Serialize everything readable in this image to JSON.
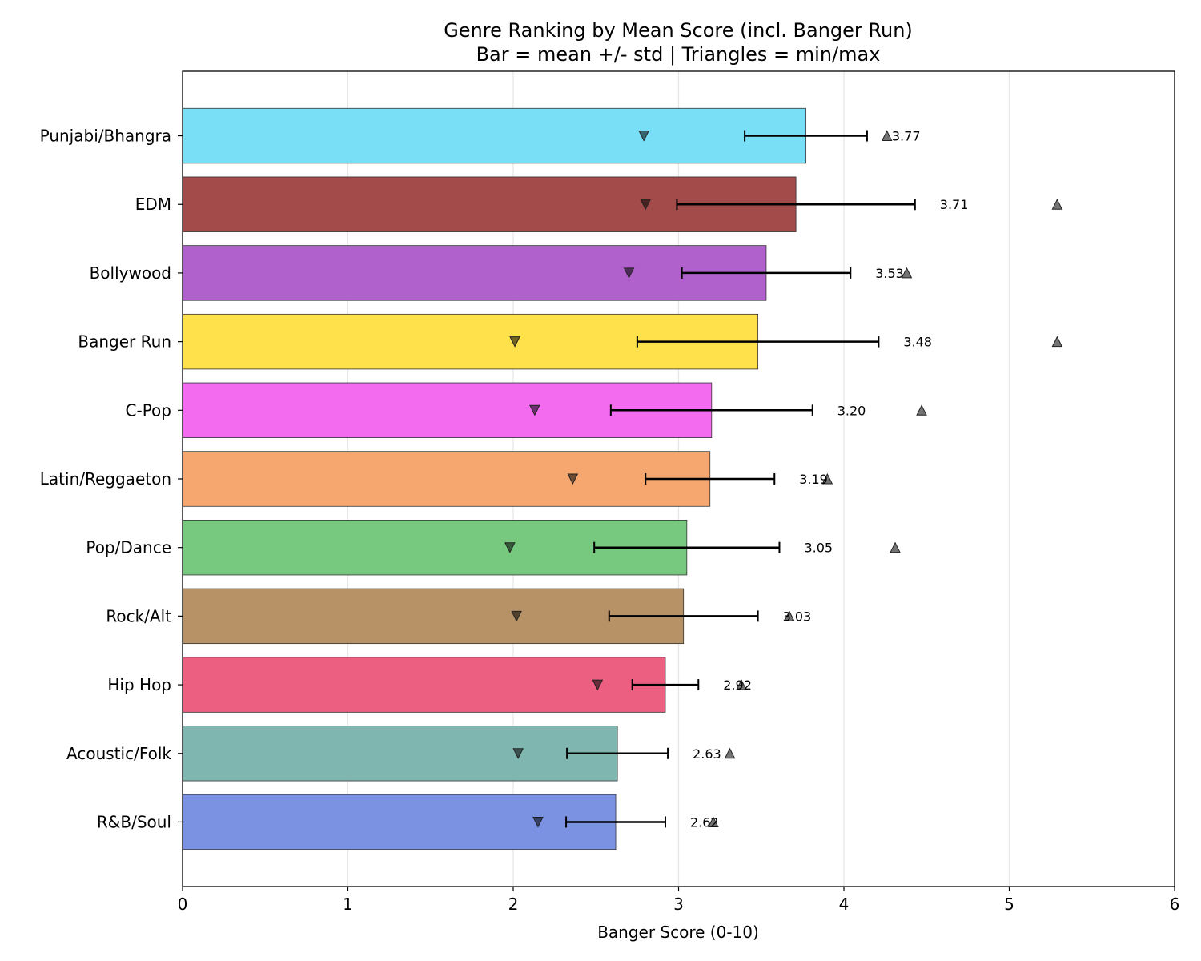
{
  "chart_data": {
    "type": "bar",
    "orientation": "horizontal",
    "title": "Genre Ranking by Mean Score (incl. Banger Run)",
    "subtitle": "Bar = mean +/- std | Triangles = min/max",
    "xlabel": "Banger Score (0-10)",
    "ylabel": "",
    "xlim": [
      0,
      6
    ],
    "xticks": [
      0,
      1,
      2,
      3,
      4,
      5,
      6
    ],
    "grid": "x",
    "categories": [
      "Punjabi/Bhangra",
      "EDM",
      "Bollywood",
      "Banger Run",
      "C-Pop",
      "Latin/Reggaeton",
      "Pop/Dance",
      "Rock/Alt",
      "Hip Hop",
      "Acoustic/Folk",
      "R&B/Soul"
    ],
    "mean": [
      3.77,
      3.71,
      3.53,
      3.48,
      3.2,
      3.19,
      3.05,
      3.03,
      2.92,
      2.63,
      2.62
    ],
    "std": [
      0.37,
      0.72,
      0.51,
      0.73,
      0.61,
      0.39,
      0.56,
      0.45,
      0.2,
      0.305,
      0.3
    ],
    "min": [
      2.79,
      2.8,
      2.7,
      2.01,
      2.13,
      2.36,
      1.98,
      2.02,
      2.51,
      2.03,
      2.15
    ],
    "max": [
      4.26,
      5.29,
      4.38,
      5.29,
      4.47,
      3.9,
      4.31,
      3.67,
      3.38,
      3.31,
      3.21
    ],
    "value_labels": [
      "3.77",
      "3.71",
      "3.53",
      "3.48",
      "3.20",
      "3.19",
      "3.05",
      "3.03",
      "2.92",
      "2.63",
      "2.62"
    ],
    "colors": [
      "#78dff6",
      "#a34b4b",
      "#b061cb",
      "#ffe14b",
      "#f36cef",
      "#f6a66f",
      "#77c97f",
      "#b89267",
      "#ec5f80",
      "#7fb7b0",
      "#7b92e3"
    ]
  }
}
